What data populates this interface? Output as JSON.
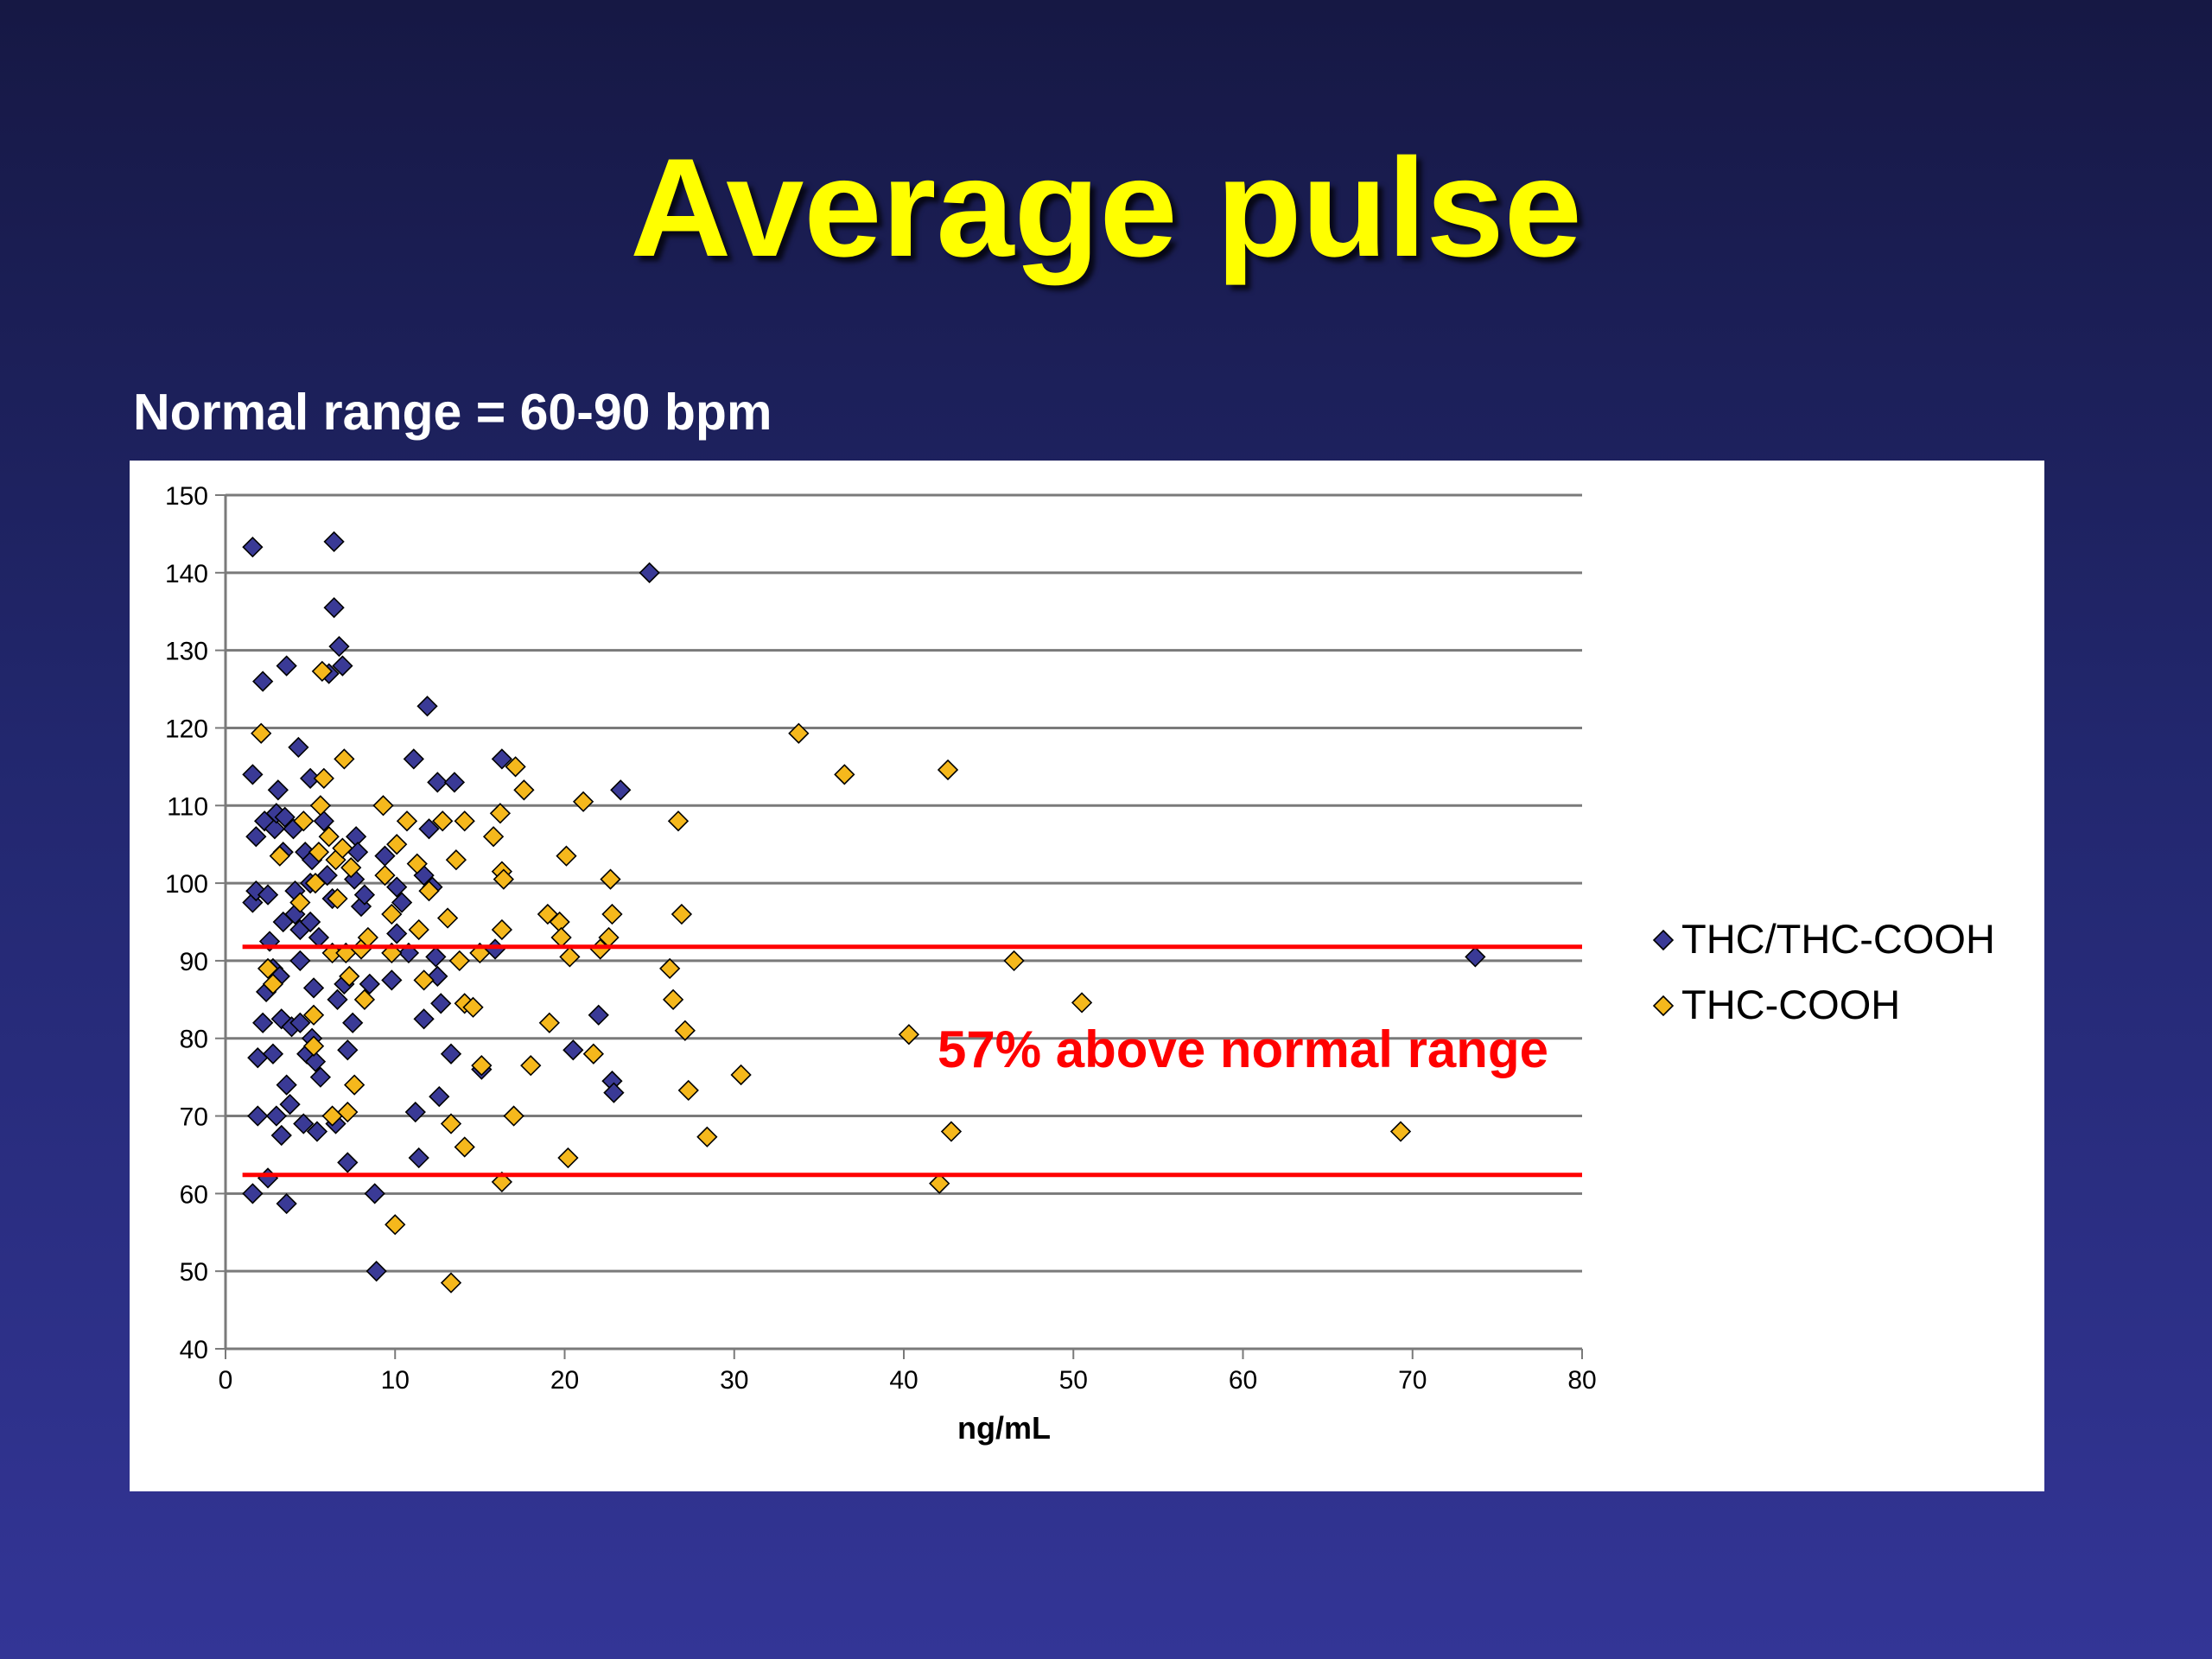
{
  "slide": {
    "title": "Average pulse",
    "subtitle": "Normal range = 60-90 bpm"
  },
  "colors": {
    "background_top": "#161844",
    "background_bottom": "#333596",
    "title": "#ffff00",
    "series1_fill": "#3a3a96",
    "series2_fill": "#f5b81c",
    "reference_line": "#ff0000",
    "annotation": "#ff0000"
  },
  "chart_data": {
    "type": "scatter",
    "xlabel": "ng/mL",
    "ylabel": "",
    "xlim": [
      0,
      80
    ],
    "ylim": [
      40,
      150
    ],
    "x_ticks": [
      0,
      10,
      20,
      30,
      40,
      50,
      60,
      70,
      80
    ],
    "y_ticks": [
      40,
      50,
      60,
      70,
      80,
      90,
      100,
      110,
      120,
      130,
      140,
      150
    ],
    "grid": true,
    "legend_position": "right",
    "reference_lines": [
      {
        "y": 91.8,
        "x_start": 1,
        "x_end": 80
      },
      {
        "y": 62.4,
        "x_start": 1,
        "x_end": 80
      }
    ],
    "annotations": [
      {
        "text": "57% above normal range",
        "x": 60,
        "y": 78.5
      }
    ],
    "series": [
      {
        "name": "THC/THC-COOH",
        "marker": "diamond",
        "color": "#3a3a96",
        "points": [
          [
            1.6,
            143.3
          ],
          [
            1.6,
            114
          ],
          [
            1.6,
            97.5
          ],
          [
            1.6,
            60
          ],
          [
            1.8,
            106
          ],
          [
            1.8,
            99
          ],
          [
            1.9,
            77.5
          ],
          [
            1.9,
            70
          ],
          [
            2.2,
            126
          ],
          [
            2.2,
            82
          ],
          [
            2.3,
            108
          ],
          [
            2.4,
            86
          ],
          [
            2.5,
            98.5
          ],
          [
            2.5,
            62
          ],
          [
            2.6,
            92.5
          ],
          [
            2.8,
            89
          ],
          [
            2.8,
            78
          ],
          [
            2.9,
            107
          ],
          [
            3.0,
            109
          ],
          [
            3.0,
            70
          ],
          [
            3.1,
            112
          ],
          [
            3.2,
            88
          ],
          [
            3.3,
            82.5
          ],
          [
            3.3,
            67.5
          ],
          [
            3.4,
            104
          ],
          [
            3.4,
            95
          ],
          [
            3.5,
            108.5
          ],
          [
            3.6,
            128
          ],
          [
            3.6,
            74
          ],
          [
            3.6,
            58.7
          ],
          [
            3.8,
            71.5
          ],
          [
            3.9,
            81.5
          ],
          [
            4.0,
            107
          ],
          [
            4.1,
            99
          ],
          [
            4.1,
            96
          ],
          [
            4.3,
            117.5
          ],
          [
            4.4,
            94
          ],
          [
            4.4,
            82
          ],
          [
            4.4,
            90
          ],
          [
            4.6,
            69
          ],
          [
            4.7,
            104
          ],
          [
            4.8,
            78
          ],
          [
            5.0,
            113.5
          ],
          [
            5.0,
            100
          ],
          [
            5.0,
            95
          ],
          [
            5.1,
            103
          ],
          [
            5.1,
            80
          ],
          [
            5.2,
            86.5
          ],
          [
            5.3,
            77
          ],
          [
            5.4,
            68
          ],
          [
            5.5,
            93
          ],
          [
            5.6,
            75
          ],
          [
            5.8,
            108
          ],
          [
            6.0,
            101
          ],
          [
            6.1,
            127
          ],
          [
            6.3,
            98
          ],
          [
            6.4,
            144
          ],
          [
            6.4,
            135.5
          ],
          [
            6.5,
            69
          ],
          [
            6.6,
            85
          ],
          [
            6.7,
            130.5
          ],
          [
            6.9,
            128
          ],
          [
            7.0,
            87
          ],
          [
            7.2,
            78.5
          ],
          [
            7.2,
            64
          ],
          [
            7.5,
            82
          ],
          [
            7.6,
            100.5
          ],
          [
            7.7,
            106
          ],
          [
            7.8,
            104
          ],
          [
            8.0,
            97
          ],
          [
            8.2,
            98.5
          ],
          [
            8.5,
            87
          ],
          [
            8.8,
            60
          ],
          [
            8.9,
            50
          ],
          [
            9.4,
            103.5
          ],
          [
            9.8,
            87.5
          ],
          [
            10.1,
            99.5
          ],
          [
            10.1,
            93.5
          ],
          [
            10.4,
            97.5
          ],
          [
            10.8,
            91
          ],
          [
            11.1,
            116
          ],
          [
            11.2,
            70.5
          ],
          [
            11.4,
            64.6
          ],
          [
            11.7,
            82.5
          ],
          [
            11.7,
            101
          ],
          [
            11.9,
            122.8
          ],
          [
            12.0,
            107
          ],
          [
            12.2,
            99.5
          ],
          [
            12.4,
            90.5
          ],
          [
            12.5,
            113
          ],
          [
            12.5,
            88
          ],
          [
            12.6,
            72.5
          ],
          [
            12.7,
            84.5
          ],
          [
            13.3,
            78
          ],
          [
            13.5,
            113
          ],
          [
            15.1,
            76
          ],
          [
            15.9,
            91.5
          ],
          [
            16.3,
            116
          ],
          [
            23.3,
            112
          ],
          [
            22.0,
            83
          ],
          [
            20.5,
            78.5
          ],
          [
            22.8,
            74.5
          ],
          [
            22.9,
            73
          ],
          [
            25.0,
            140
          ],
          [
            73.7,
            90.5
          ]
        ]
      },
      {
        "name": "THC-COOH",
        "marker": "diamond",
        "color": "#f5b81c",
        "points": [
          [
            2.1,
            119.3
          ],
          [
            2.5,
            89
          ],
          [
            2.8,
            87
          ],
          [
            3.2,
            103.5
          ],
          [
            4.4,
            97.5
          ],
          [
            4.6,
            108
          ],
          [
            5.2,
            83
          ],
          [
            5.2,
            79
          ],
          [
            5.3,
            100
          ],
          [
            5.5,
            104
          ],
          [
            5.6,
            110
          ],
          [
            5.7,
            127.3
          ],
          [
            5.8,
            113.5
          ],
          [
            6.1,
            106
          ],
          [
            6.3,
            91
          ],
          [
            6.3,
            70
          ],
          [
            6.5,
            103
          ],
          [
            6.6,
            98
          ],
          [
            6.9,
            104.5
          ],
          [
            7.0,
            116
          ],
          [
            7.1,
            91
          ],
          [
            7.2,
            70.5
          ],
          [
            7.3,
            88
          ],
          [
            7.4,
            102
          ],
          [
            7.6,
            74
          ],
          [
            8.0,
            91.5
          ],
          [
            8.2,
            85
          ],
          [
            8.4,
            93
          ],
          [
            9.3,
            110
          ],
          [
            9.4,
            101
          ],
          [
            9.8,
            96
          ],
          [
            9.8,
            91
          ],
          [
            10.0,
            56
          ],
          [
            10.1,
            105
          ],
          [
            10.7,
            108
          ],
          [
            11.3,
            102.5
          ],
          [
            11.4,
            94
          ],
          [
            11.7,
            87.5
          ],
          [
            12.0,
            99
          ],
          [
            12.8,
            108
          ],
          [
            13.1,
            95.5
          ],
          [
            13.3,
            69
          ],
          [
            13.3,
            48.5
          ],
          [
            13.6,
            103
          ],
          [
            13.8,
            90
          ],
          [
            14.1,
            84.5
          ],
          [
            14.1,
            66
          ],
          [
            14.1,
            108
          ],
          [
            14.6,
            84
          ],
          [
            15.0,
            91
          ],
          [
            15.1,
            76.5
          ],
          [
            15.8,
            106
          ],
          [
            16.2,
            109
          ],
          [
            16.3,
            101.5
          ],
          [
            16.3,
            94
          ],
          [
            16.3,
            61.5
          ],
          [
            16.4,
            100.5
          ],
          [
            17.0,
            70
          ],
          [
            17.1,
            115
          ],
          [
            17.6,
            112
          ],
          [
            18.0,
            76.5
          ],
          [
            19.0,
            96
          ],
          [
            19.1,
            82
          ],
          [
            19.7,
            95
          ],
          [
            19.8,
            93
          ],
          [
            20.1,
            103.5
          ],
          [
            20.2,
            64.6
          ],
          [
            20.3,
            90.5
          ],
          [
            21.1,
            110.5
          ],
          [
            21.7,
            78
          ],
          [
            22.1,
            91.5
          ],
          [
            22.6,
            93
          ],
          [
            22.7,
            100.5
          ],
          [
            22.8,
            96
          ],
          [
            26.2,
            89
          ],
          [
            26.4,
            85
          ],
          [
            26.7,
            108
          ],
          [
            26.9,
            96
          ],
          [
            27.1,
            81
          ],
          [
            27.3,
            73.3
          ],
          [
            28.4,
            67.3
          ],
          [
            30.4,
            75.3
          ],
          [
            33.8,
            119.3
          ],
          [
            36.5,
            114
          ],
          [
            40.3,
            80.5
          ],
          [
            42.1,
            61.3
          ],
          [
            42.6,
            114.6
          ],
          [
            42.8,
            68
          ],
          [
            46.5,
            90
          ],
          [
            50.5,
            84.6
          ],
          [
            69.3,
            68
          ]
        ]
      }
    ]
  }
}
